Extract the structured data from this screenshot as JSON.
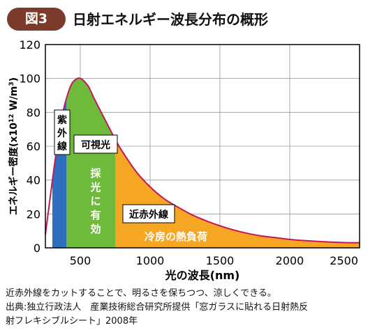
{
  "header": {
    "badge": "図3",
    "title": "日射エネルギー波長分布の概形"
  },
  "chart_data": {
    "type": "area",
    "xlabel": "光の波長(nm)",
    "ylabel": "エネルギー密度(x10",
    "ylabel_sup1": "12",
    "ylabel_mid": " W/m",
    "ylabel_sup2": "3",
    "ylabel_end": ")",
    "xlim": [
      250,
      2500
    ],
    "ylim": [
      0,
      120
    ],
    "x_ticks": [
      500,
      1000,
      1500,
      2000,
      2500
    ],
    "y_ticks": [
      0,
      20,
      40,
      60,
      80,
      100,
      120
    ],
    "grid": true,
    "line_color": "#c2185b",
    "series": [
      {
        "x": [
          250,
          280,
          320,
          360,
          400,
          440,
          480,
          500,
          520,
          560,
          600,
          650,
          700,
          750,
          800,
          900,
          1000,
          1100,
          1200,
          1300,
          1400,
          1500,
          1600,
          1700,
          1800,
          1900,
          2000,
          2100,
          2200,
          2300,
          2400,
          2500
        ],
        "values": [
          8,
          27,
          52,
          74,
          88,
          97,
          100,
          100,
          99,
          95,
          88,
          80,
          72,
          64,
          57,
          45,
          36,
          29,
          24,
          19.5,
          16,
          13,
          10.5,
          8.5,
          7,
          6,
          5,
          4.3,
          3.8,
          3.4,
          3.1,
          3
        ]
      }
    ],
    "bands": [
      {
        "label": "紫外線",
        "from": 300,
        "to": 400,
        "color": "#2f6fc0"
      },
      {
        "label": "可視光",
        "inner_label": "採光に有効",
        "from": 400,
        "to": 750,
        "color": "#6fba3a"
      },
      {
        "label": "近赤外線",
        "inner_label": "冷房の熱負荷",
        "from": 750,
        "to": 2500,
        "color": "#f5a623"
      }
    ]
  },
  "notes": {
    "line1": "近赤外線をカットすることで、明るさを保ちつつ、涼しくできる。",
    "line2": "出典:独立行政法人　産業技術総合研究所提供「窓ガラスに貼れる日射熱反",
    "line3": "射フレキシブルシート」2008年"
  }
}
